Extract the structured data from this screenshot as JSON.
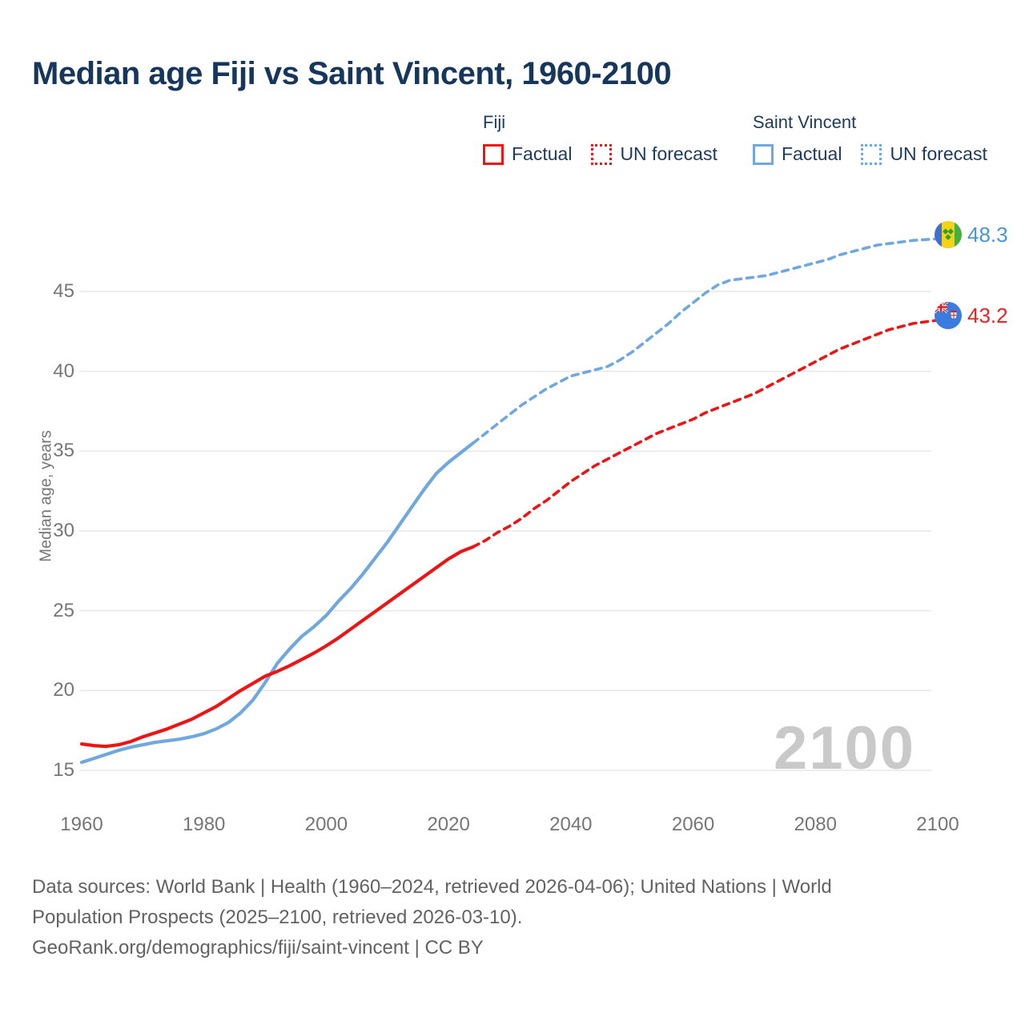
{
  "title": "Median age Fiji vs Saint Vincent, 1960-2100",
  "legend": {
    "groups": [
      {
        "name": "Fiji",
        "color": "#ee1414",
        "items": [
          {
            "label": "Factual",
            "style": "solid"
          },
          {
            "label": "UN forecast",
            "style": "dotted"
          }
        ]
      },
      {
        "name": "Saint Vincent",
        "color": "#6fa8e0",
        "items": [
          {
            "label": "Factual",
            "style": "solid"
          },
          {
            "label": "UN forecast",
            "style": "dotted"
          }
        ]
      }
    ]
  },
  "watermark": "2100",
  "end_labels": [
    {
      "series": "Saint Vincent",
      "value": "48.3",
      "color": "#4a94d9",
      "flag": "saint-vincent-flag"
    },
    {
      "series": "Fiji",
      "value": "43.2",
      "color": "#ee2222",
      "flag": "fiji-flag"
    }
  ],
  "footer": {
    "line1": "Data sources: World Bank | Health (1960–2024, retrieved 2026-04-06); United Nations | World",
    "line2": "Population Prospects (2025–2100, retrieved 2026-03-10).",
    "line3": "GeoRank.org/demographics/fiji/saint-vincent | CC BY"
  },
  "colors": {
    "fiji": "#ee1414",
    "saint_vincent": "#6fa8e0",
    "title_navy": "#17365c",
    "axis_gray": "#767676",
    "gridline": "#e7e7e7",
    "watermark_gray": "#c9c9c9"
  },
  "chart_data": {
    "type": "line",
    "title": "Median age Fiji vs Saint Vincent, 1960-2100",
    "xlabel": "",
    "ylabel": "Median age, years",
    "ylim": [
      13.5,
      49.5
    ],
    "xlim": [
      1955,
      2113
    ],
    "yticks": [
      15,
      20,
      25,
      30,
      35,
      40,
      45
    ],
    "xticks": [
      1960,
      1980,
      2000,
      2020,
      2040,
      2060,
      2080,
      2100
    ],
    "grid": "horizontal",
    "legend_position": "top-right",
    "series": [
      {
        "name": "Saint Vincent — Factual",
        "color": "#6fa8e0",
        "style": "solid",
        "points": [
          [
            1960,
            15.5
          ],
          [
            1962,
            15.75
          ],
          [
            1964,
            16.0
          ],
          [
            1966,
            16.25
          ],
          [
            1968,
            16.45
          ],
          [
            1970,
            16.6
          ],
          [
            1972,
            16.75
          ],
          [
            1974,
            16.85
          ],
          [
            1976,
            16.95
          ],
          [
            1978,
            17.1
          ],
          [
            1980,
            17.3
          ],
          [
            1982,
            17.6
          ],
          [
            1984,
            18.0
          ],
          [
            1986,
            18.6
          ],
          [
            1988,
            19.4
          ],
          [
            1990,
            20.5
          ],
          [
            1991,
            21.1
          ],
          [
            1992,
            21.7
          ],
          [
            1994,
            22.6
          ],
          [
            1996,
            23.4
          ],
          [
            1998,
            24.0
          ],
          [
            2000,
            24.7
          ],
          [
            2002,
            25.6
          ],
          [
            2004,
            26.4
          ],
          [
            2006,
            27.3
          ],
          [
            2008,
            28.3
          ],
          [
            2010,
            29.3
          ],
          [
            2012,
            30.4
          ],
          [
            2014,
            31.5
          ],
          [
            2016,
            32.6
          ],
          [
            2018,
            33.6
          ],
          [
            2020,
            34.3
          ],
          [
            2022,
            34.9
          ],
          [
            2024,
            35.5
          ]
        ]
      },
      {
        "name": "Saint Vincent — UN forecast",
        "color": "#6fa8e0",
        "style": "dashed",
        "points": [
          [
            2024,
            35.5
          ],
          [
            2026,
            36.1
          ],
          [
            2028,
            36.7
          ],
          [
            2030,
            37.3
          ],
          [
            2032,
            37.9
          ],
          [
            2034,
            38.4
          ],
          [
            2036,
            38.9
          ],
          [
            2038,
            39.3
          ],
          [
            2040,
            39.7
          ],
          [
            2042,
            39.9
          ],
          [
            2044,
            40.1
          ],
          [
            2046,
            40.3
          ],
          [
            2048,
            40.7
          ],
          [
            2050,
            41.2
          ],
          [
            2052,
            41.8
          ],
          [
            2054,
            42.4
          ],
          [
            2056,
            43.0
          ],
          [
            2058,
            43.7
          ],
          [
            2060,
            44.3
          ],
          [
            2062,
            44.9
          ],
          [
            2064,
            45.4
          ],
          [
            2066,
            45.7
          ],
          [
            2068,
            45.8
          ],
          [
            2070,
            45.9
          ],
          [
            2072,
            46.0
          ],
          [
            2074,
            46.2
          ],
          [
            2076,
            46.4
          ],
          [
            2078,
            46.6
          ],
          [
            2080,
            46.8
          ],
          [
            2082,
            47.0
          ],
          [
            2084,
            47.3
          ],
          [
            2086,
            47.5
          ],
          [
            2088,
            47.7
          ],
          [
            2090,
            47.9
          ],
          [
            2092,
            48.0
          ],
          [
            2094,
            48.1
          ],
          [
            2096,
            48.2
          ],
          [
            2098,
            48.25
          ],
          [
            2100,
            48.3
          ]
        ]
      },
      {
        "name": "Fiji — Factual",
        "color": "#ee1414",
        "style": "solid",
        "points": [
          [
            1960,
            16.65
          ],
          [
            1962,
            16.55
          ],
          [
            1964,
            16.5
          ],
          [
            1966,
            16.6
          ],
          [
            1968,
            16.8
          ],
          [
            1970,
            17.1
          ],
          [
            1972,
            17.35
          ],
          [
            1974,
            17.6
          ],
          [
            1976,
            17.9
          ],
          [
            1978,
            18.2
          ],
          [
            1980,
            18.6
          ],
          [
            1982,
            19.0
          ],
          [
            1984,
            19.5
          ],
          [
            1986,
            20.0
          ],
          [
            1988,
            20.45
          ],
          [
            1990,
            20.9
          ],
          [
            1992,
            21.2
          ],
          [
            1994,
            21.55
          ],
          [
            1996,
            21.95
          ],
          [
            1998,
            22.35
          ],
          [
            2000,
            22.8
          ],
          [
            2002,
            23.3
          ],
          [
            2004,
            23.85
          ],
          [
            2006,
            24.4
          ],
          [
            2008,
            24.95
          ],
          [
            2010,
            25.5
          ],
          [
            2012,
            26.05
          ],
          [
            2014,
            26.6
          ],
          [
            2016,
            27.15
          ],
          [
            2018,
            27.7
          ],
          [
            2020,
            28.25
          ],
          [
            2022,
            28.7
          ],
          [
            2024,
            29.0
          ]
        ]
      },
      {
        "name": "Fiji — UN forecast",
        "color": "#ee1414",
        "style": "dashed",
        "points": [
          [
            2024,
            29.0
          ],
          [
            2026,
            29.4
          ],
          [
            2028,
            29.9
          ],
          [
            2030,
            30.3
          ],
          [
            2032,
            30.8
          ],
          [
            2034,
            31.4
          ],
          [
            2036,
            31.9
          ],
          [
            2038,
            32.5
          ],
          [
            2040,
            33.1
          ],
          [
            2042,
            33.6
          ],
          [
            2044,
            34.1
          ],
          [
            2046,
            34.5
          ],
          [
            2048,
            34.9
          ],
          [
            2050,
            35.3
          ],
          [
            2052,
            35.7
          ],
          [
            2054,
            36.1
          ],
          [
            2056,
            36.4
          ],
          [
            2058,
            36.7
          ],
          [
            2060,
            37.0
          ],
          [
            2062,
            37.4
          ],
          [
            2064,
            37.7
          ],
          [
            2066,
            38.0
          ],
          [
            2068,
            38.3
          ],
          [
            2070,
            38.6
          ],
          [
            2072,
            39.0
          ],
          [
            2074,
            39.4
          ],
          [
            2076,
            39.8
          ],
          [
            2078,
            40.2
          ],
          [
            2080,
            40.6
          ],
          [
            2082,
            41.0
          ],
          [
            2084,
            41.4
          ],
          [
            2086,
            41.7
          ],
          [
            2088,
            42.0
          ],
          [
            2090,
            42.3
          ],
          [
            2092,
            42.6
          ],
          [
            2094,
            42.8
          ],
          [
            2096,
            43.0
          ],
          [
            2098,
            43.1
          ],
          [
            2100,
            43.2
          ]
        ]
      }
    ],
    "end_values": {
      "saint_vincent_2100": 48.3,
      "fiji_2100": 43.2
    }
  }
}
